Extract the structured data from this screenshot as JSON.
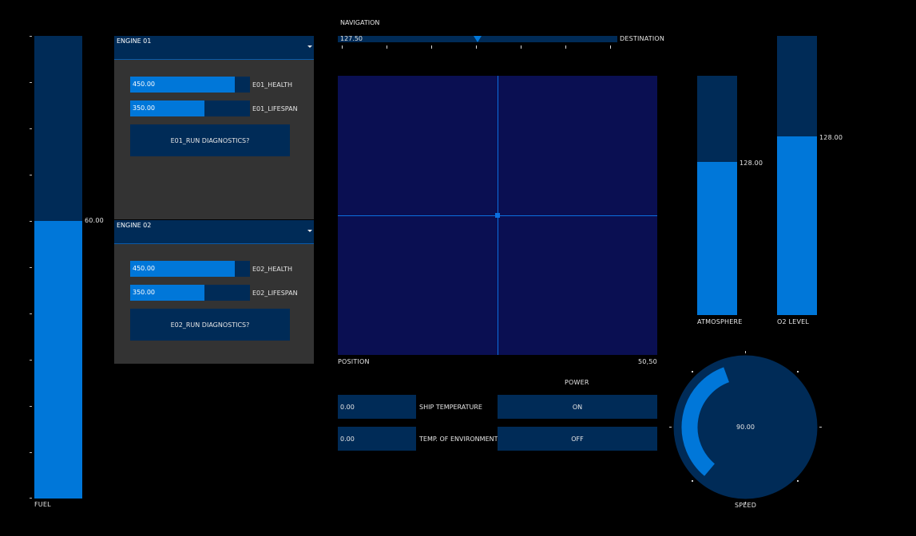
{
  "fuel": {
    "label": "FUEL",
    "value_text": "60.00",
    "value": 60,
    "max": 100
  },
  "engines": [
    {
      "title": "ENGINE 01",
      "health": {
        "value_text": "450.00",
        "label": "E01_HEALTH",
        "fraction": 0.87
      },
      "lifespan": {
        "value_text": "350.00",
        "label": "E01_LIFESPAN",
        "fraction": 0.62
      },
      "diagnostics_label": "E01_RUN DIAGNOSTICS?"
    },
    {
      "title": "ENGINE 02",
      "health": {
        "value_text": "450.00",
        "label": "E02_HEALTH",
        "fraction": 0.87
      },
      "lifespan": {
        "value_text": "350.00",
        "label": "E02_LIFESPAN",
        "fraction": 0.62
      },
      "diagnostics_label": "E02_RUN DIAGNOSTICS?"
    }
  ],
  "navigation": {
    "title": "NAVIGATION",
    "value_text": "127.50",
    "destination_label": "DESTINATION",
    "value_fraction": 0.5
  },
  "position": {
    "label": "POSITION",
    "value_text": "50,50",
    "x": 50,
    "y": 50
  },
  "temperatures": [
    {
      "value_text": "0.00",
      "label": "SHIP TEMPERATURE"
    },
    {
      "value_text": "0.00",
      "label": "TEMP. OF ENVIRONMENT"
    }
  ],
  "power": {
    "title": "POWER",
    "on_label": "ON",
    "off_label": "OFF"
  },
  "atmosphere": {
    "label": "ATMOSPHERE",
    "value_text": "128.00",
    "fraction": 0.64
  },
  "o2": {
    "label": "O2 LEVEL",
    "value_text": "128.00",
    "fraction": 0.64
  },
  "speed": {
    "label": "SPEED",
    "value_text": "90.00",
    "value": 90
  },
  "colors": {
    "background": "#000000",
    "panel": "#333333",
    "dark_blue": "#002b57",
    "accent_blue": "#0077d9",
    "pad_blue": "#0a0f52",
    "line_blue": "#0b6fe0"
  }
}
